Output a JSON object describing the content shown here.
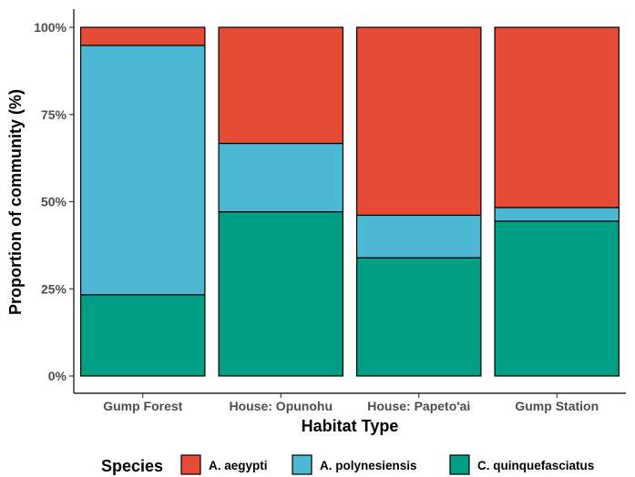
{
  "chart_data": {
    "type": "bar",
    "stacked": true,
    "normalized": true,
    "xlabel": "Habitat Type",
    "ylabel": "Proportion of community (%)",
    "categories": [
      "Gump Forest",
      "House: Opunohu",
      "House: Papeto'ai",
      "Gump Station"
    ],
    "ylim": [
      0,
      100
    ],
    "yticks": [
      {
        "value": 0,
        "label": "0%"
      },
      {
        "value": 25,
        "label": "25%"
      },
      {
        "value": 50,
        "label": "50%"
      },
      {
        "value": 75,
        "label": "75%"
      },
      {
        "value": 100,
        "label": "100%"
      }
    ],
    "grid": false,
    "legend": {
      "title": "Species",
      "position": "bottom"
    },
    "series": [
      {
        "name": "C. quinquefasciatus",
        "color": "#009E84",
        "values": [
          23.3,
          47.1,
          33.9,
          44.4
        ]
      },
      {
        "name": "A. polynesiensis",
        "color": "#4CB8D4",
        "values": [
          71.5,
          19.6,
          12.2,
          3.9
        ]
      },
      {
        "name": "A. aegypti",
        "color": "#E64B35",
        "values": [
          5.2,
          33.3,
          53.9,
          51.7
        ]
      }
    ],
    "legend_order": [
      "A. aegypti",
      "A. polynesiensis",
      "C. quinquefasciatus"
    ]
  }
}
